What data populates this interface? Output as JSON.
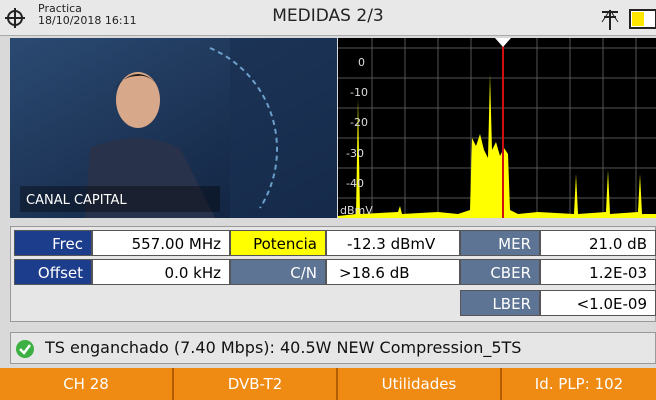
{
  "header": {
    "location": "Practica",
    "datetime": "18/10/2018 16:11",
    "title": "MEDIDAS 2/3"
  },
  "video": {
    "channel_name": "CANAL CAPITAL"
  },
  "spectrum": {
    "y_labels": [
      "0",
      "-10",
      "-20",
      "-30",
      "-40"
    ],
    "unit": "dBmV"
  },
  "measurements": {
    "rows": [
      [
        "Frec",
        "557.00 MHz",
        "Potencia",
        "-12.3 dBmV",
        "MER",
        "21.0 dB"
      ],
      [
        "Offset",
        "0.0 kHz",
        "C/N",
        ">18.6 dB",
        "CBER",
        "1.2E-03"
      ],
      [
        "LBER",
        "<1.0E-09"
      ]
    ]
  },
  "status": "TS enganchado (7.40 Mbps): 40.5W NEW Compression_5TS",
  "buttons": [
    "CH 28",
    "DVB-T2",
    "Utilidades",
    "Id. PLP: 102"
  ]
}
